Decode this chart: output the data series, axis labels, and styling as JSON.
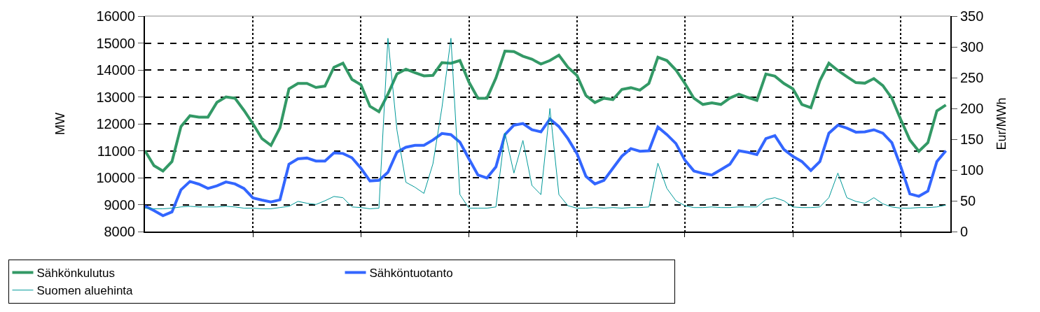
{
  "chart_data": {
    "type": "line",
    "ylabel": "MW",
    "y2label": "Eur/MWh",
    "categories": [
      null,
      null,
      null,
      null,
      null,
      null,
      null,
      null,
      null,
      null,
      null,
      null,
      null,
      null,
      null,
      null,
      null,
      null,
      null,
      null,
      null,
      null,
      null,
      null,
      null,
      null,
      null,
      null,
      null,
      null,
      null,
      null,
      null,
      null,
      null,
      null,
      null,
      null,
      null,
      null,
      null,
      null,
      null,
      null,
      null,
      null,
      null,
      null,
      null,
      null,
      null,
      null,
      null,
      null,
      null,
      null,
      null,
      null,
      null,
      null,
      null,
      null,
      null,
      null,
      null,
      null,
      null,
      null,
      null,
      null,
      null,
      null,
      null,
      null,
      null,
      null,
      null,
      null,
      null,
      null,
      null,
      null,
      null,
      null,
      null,
      null,
      null,
      null,
      null,
      null
    ],
    "series": [
      {
        "name": "Sähkönkulutus",
        "color": "#339966",
        "values": [
          11000,
          10450,
          10250,
          10600,
          11900,
          12300,
          12250,
          12250,
          12800,
          13000,
          12950,
          12500,
          12000,
          11450,
          11200,
          11850,
          13300,
          13500,
          13500,
          13350,
          13400,
          14100,
          14250,
          13650,
          13450,
          12650,
          12450,
          13100,
          13850,
          14030,
          13900,
          13780,
          13800,
          14270,
          14250,
          14350,
          13550,
          12950,
          12950,
          13700,
          14700,
          14680,
          14510,
          14400,
          14220,
          14350,
          14550,
          14100,
          13800,
          13050,
          12790,
          12950,
          12900,
          13280,
          13340,
          13250,
          13500,
          14470,
          14350,
          14000,
          13500,
          12950,
          12720,
          12780,
          12720,
          12960,
          13100,
          12980,
          12870,
          13850,
          13770,
          13500,
          13300,
          12720,
          12600,
          13600,
          14250,
          13980,
          13750,
          13530,
          13510,
          13680,
          13420,
          12950,
          12150,
          11400,
          10980,
          11300,
          12480,
          12700
        ]
      },
      {
        "name": "Sähköntuotanto",
        "color": "#3366ff",
        "values": [
          8950,
          8780,
          8590,
          8730,
          9550,
          9860,
          9760,
          9600,
          9700,
          9840,
          9770,
          9600,
          9250,
          9170,
          9100,
          9180,
          10500,
          10700,
          10730,
          10620,
          10620,
          10920,
          10900,
          10740,
          10350,
          9880,
          9900,
          10200,
          10950,
          11130,
          11200,
          11200,
          11400,
          11640,
          11600,
          11320,
          10700,
          10100,
          9990,
          10400,
          11600,
          11950,
          12010,
          11780,
          11700,
          12180,
          11900,
          11450,
          10900,
          10050,
          9770,
          9900,
          10350,
          10800,
          11080,
          10980,
          11000,
          11880,
          11600,
          11270,
          10650,
          10250,
          10160,
          10100,
          10300,
          10500,
          11000,
          10940,
          10860,
          11450,
          11560,
          11050,
          10790,
          10600,
          10270,
          10600,
          11650,
          11950,
          11840,
          11690,
          11700,
          11780,
          11650,
          11300,
          10400,
          9400,
          9310,
          9500,
          10600,
          11000
        ]
      },
      {
        "name": "Suomen aluehinta",
        "color": "#009999",
        "axis": "y2",
        "values": [
          38,
          37,
          37,
          38,
          40,
          41,
          40,
          40,
          40,
          41,
          40,
          38,
          38,
          37,
          37,
          39,
          41,
          49,
          46,
          44,
          50,
          57,
          55,
          40,
          39,
          37,
          38,
          314,
          165,
          80,
          72,
          62,
          110,
          201,
          314,
          60,
          38,
          38,
          38,
          40,
          160,
          95,
          148,
          75,
          60,
          200,
          60,
          42,
          38,
          38,
          39,
          38,
          39,
          38,
          39,
          39,
          40,
          111,
          70,
          50,
          42,
          39,
          39,
          40,
          39,
          39,
          40,
          40,
          40,
          52,
          55,
          50,
          40,
          39,
          39,
          40,
          55,
          95,
          55,
          49,
          46,
          55,
          45,
          40,
          38,
          38,
          39,
          39,
          40,
          43
        ]
      }
    ],
    "ylim": [
      8000,
      16000
    ],
    "yticks": [
      8000,
      9000,
      10000,
      11000,
      12000,
      13000,
      14000,
      15000,
      16000
    ],
    "y2lim": [
      0,
      350
    ],
    "y2ticks": [
      0,
      50,
      100,
      150,
      200,
      250,
      300,
      350
    ],
    "grid": true,
    "legend": "bottom",
    "line_style": "solid",
    "marker": "none"
  }
}
